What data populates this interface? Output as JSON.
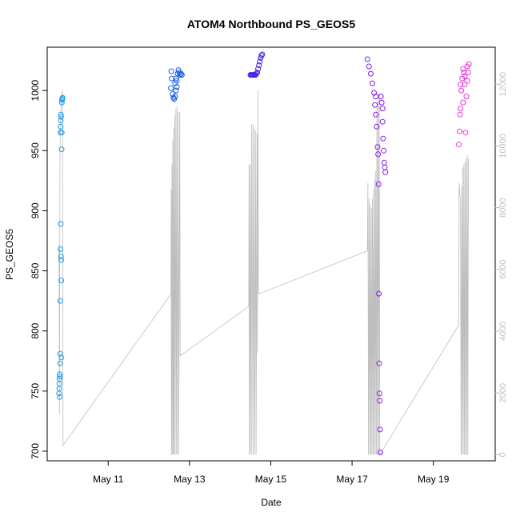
{
  "chart_data": {
    "type": "scatter",
    "title": "ATOM4 Northbound PS_GEOS5",
    "xlabel": "Date",
    "ylabel": "PS_GEOS5",
    "xlim": [
      "2016-05-09T12:00",
      "2016-05-20T12:30"
    ],
    "ylim": [
      692,
      1036
    ],
    "yticks": [
      700,
      750,
      800,
      850,
      900,
      950,
      1000
    ],
    "xticks": [
      {
        "label": "May 11",
        "t": "2016-05-11T00:00"
      },
      {
        "label": "May 13",
        "t": "2016-05-13T00:00"
      },
      {
        "label": "May 15",
        "t": "2016-05-15T00:00"
      },
      {
        "label": "May 17",
        "t": "2016-05-17T00:00"
      },
      {
        "label": "May 19",
        "t": "2016-05-19T00:00"
      }
    ],
    "y2lim": [
      -200,
      13200
    ],
    "y2ticks": [
      0,
      2000,
      4000,
      6000,
      8000,
      10000,
      12000
    ],
    "y2color": "#bebebe",
    "grid": false,
    "legend": "none",
    "series": [
      {
        "color": "#1e9bea",
        "points": [
          [
            "2016-05-09T19:00",
            748
          ],
          [
            "2016-05-09T19:05",
            752
          ],
          [
            "2016-05-09T19:10",
            756
          ],
          [
            "2016-05-09T19:15",
            760
          ],
          [
            "2016-05-09T19:20",
            764
          ],
          [
            "2016-05-09T19:25",
            745
          ],
          [
            "2016-05-09T19:30",
            762
          ],
          [
            "2016-05-09T19:35",
            773
          ],
          [
            "2016-05-09T19:40",
            781
          ],
          [
            "2016-05-09T19:45",
            825
          ],
          [
            "2016-05-09T19:50",
            868
          ],
          [
            "2016-05-09T20:00",
            889
          ],
          [
            "2016-05-09T20:10",
            862
          ],
          [
            "2016-05-09T20:15",
            859
          ],
          [
            "2016-05-09T20:20",
            842
          ],
          [
            "2016-05-09T20:25",
            778
          ],
          [
            "2016-05-09T20:30",
            951
          ],
          [
            "2016-05-09T20:35",
            965
          ],
          [
            "2016-05-09T19:50",
            965
          ],
          [
            "2016-05-09T19:55",
            970
          ],
          [
            "2016-05-09T20:00",
            975
          ],
          [
            "2016-05-09T20:05",
            980
          ],
          [
            "2016-05-09T20:10",
            978
          ],
          [
            "2016-05-09T20:40",
            990
          ],
          [
            "2016-05-09T20:45",
            992
          ],
          [
            "2016-05-09T20:55",
            993
          ],
          [
            "2016-05-09T21:05",
            994
          ]
        ]
      },
      {
        "color": "#1a5ce6",
        "points": [
          [
            "2016-05-12T13:00",
            1002
          ],
          [
            "2016-05-12T13:15",
            1016
          ],
          [
            "2016-05-12T13:30",
            1010
          ],
          [
            "2016-05-12T14:00",
            997
          ],
          [
            "2016-05-12T14:30",
            994
          ],
          [
            "2016-05-12T15:00",
            993
          ],
          [
            "2016-05-12T15:30",
            995
          ],
          [
            "2016-05-12T16:00",
            1000
          ],
          [
            "2016-05-12T16:30",
            1008
          ],
          [
            "2016-05-12T17:00",
            1014
          ],
          [
            "2016-05-12T17:30",
            1017
          ],
          [
            "2016-05-12T18:00",
            1015
          ],
          [
            "2016-05-12T18:30",
            1013
          ],
          [
            "2016-05-12T19:00",
            1014
          ],
          [
            "2016-05-12T19:30",
            1013
          ],
          [
            "2016-05-12T15:30",
            1006
          ],
          [
            "2016-05-12T16:00",
            1010
          ],
          [
            "2016-05-12T16:30",
            1003
          ]
        ]
      },
      {
        "color": "#4b20e8",
        "points": [
          [
            "2016-05-14T12:00",
            1013
          ],
          [
            "2016-05-14T12:30",
            1013
          ],
          [
            "2016-05-14T13:00",
            1013
          ],
          [
            "2016-05-14T13:30",
            1013
          ],
          [
            "2016-05-14T14:00",
            1013
          ],
          [
            "2016-05-14T14:30",
            1013
          ],
          [
            "2016-05-14T15:00",
            1013
          ],
          [
            "2016-05-14T15:30",
            1014
          ],
          [
            "2016-05-14T16:00",
            1015
          ],
          [
            "2016-05-14T16:30",
            1018
          ],
          [
            "2016-05-14T17:00",
            1021
          ],
          [
            "2016-05-14T17:30",
            1024
          ],
          [
            "2016-05-14T18:00",
            1027
          ],
          [
            "2016-05-14T18:30",
            1029
          ],
          [
            "2016-05-14T19:00",
            1030
          ]
        ]
      },
      {
        "color": "#8a1be6",
        "points": [
          [
            "2016-05-17T09:00",
            1026
          ],
          [
            "2016-05-17T10:00",
            1020
          ],
          [
            "2016-05-17T11:00",
            1014
          ],
          [
            "2016-05-17T12:00",
            1006
          ],
          [
            "2016-05-17T13:00",
            998
          ],
          [
            "2016-05-17T13:30",
            988
          ],
          [
            "2016-05-17T14:00",
            980
          ],
          [
            "2016-05-17T14:30",
            970
          ],
          [
            "2016-05-17T15:00",
            953
          ],
          [
            "2016-05-17T15:20",
            947
          ],
          [
            "2016-05-17T15:40",
            922
          ],
          [
            "2016-05-17T15:50",
            831
          ],
          [
            "2016-05-17T16:00",
            773
          ],
          [
            "2016-05-17T16:10",
            748
          ],
          [
            "2016-05-17T16:20",
            742
          ],
          [
            "2016-05-17T16:30",
            718
          ],
          [
            "2016-05-17T16:40",
            699
          ],
          [
            "2016-05-17T17:00",
            995
          ],
          [
            "2016-05-17T17:30",
            990
          ],
          [
            "2016-05-17T18:00",
            974
          ],
          [
            "2016-05-17T18:20",
            960
          ],
          [
            "2016-05-17T18:40",
            950
          ],
          [
            "2016-05-17T19:00",
            940
          ],
          [
            "2016-05-17T19:20",
            936
          ],
          [
            "2016-05-17T19:40",
            932
          ],
          [
            "2016-05-17T18:00",
            985
          ],
          [
            "2016-05-17T14:00",
            995
          ]
        ]
      },
      {
        "color": "#e63ad6",
        "points": [
          [
            "2016-05-19T15:00",
            955
          ],
          [
            "2016-05-19T15:30",
            966
          ],
          [
            "2016-05-19T16:00",
            985
          ],
          [
            "2016-05-19T16:30",
            1000
          ],
          [
            "2016-05-19T17:00",
            1010
          ],
          [
            "2016-05-19T17:30",
            1018
          ],
          [
            "2016-05-19T18:00",
            1015
          ],
          [
            "2016-05-19T18:30",
            1005
          ],
          [
            "2016-05-19T19:00",
            965
          ],
          [
            "2016-05-19T19:30",
            995
          ],
          [
            "2016-05-19T20:00",
            1008
          ],
          [
            "2016-05-19T20:30",
            1015
          ],
          [
            "2016-05-19T21:00",
            1022
          ],
          [
            "2016-05-19T16:00",
            1005
          ],
          [
            "2016-05-19T17:30",
            990
          ],
          [
            "2016-05-19T18:30",
            1012
          ],
          [
            "2016-05-19T20:00",
            1020
          ],
          [
            "2016-05-19T15:45",
            980
          ]
        ]
      }
    ],
    "secondary_line": {
      "color": "#bebebe",
      "points": [
        [
          "2016-05-09T19:00",
          6800
        ],
        [
          "2016-05-09T19:15",
          1300
        ],
        [
          "2016-05-09T19:30",
          9500
        ],
        [
          "2016-05-09T19:45",
          10500
        ],
        [
          "2016-05-09T20:00",
          11000
        ],
        [
          "2016-05-09T20:30",
          11500
        ],
        [
          "2016-05-09T21:00",
          11800
        ],
        [
          "2016-05-09T21:20",
          300
        ],
        [
          "2016-05-12T13:00",
          5200
        ],
        [
          "2016-05-12T13:10",
          8600
        ],
        [
          "2016-05-12T13:20",
          0
        ],
        [
          "2016-05-12T13:40",
          9400
        ],
        [
          "2016-05-12T13:50",
          0
        ],
        [
          "2016-05-12T14:10",
          10200
        ],
        [
          "2016-05-12T14:20",
          0
        ],
        [
          "2016-05-12T14:40",
          10600
        ],
        [
          "2016-05-12T14:50",
          0
        ],
        [
          "2016-05-12T15:20",
          11000
        ],
        [
          "2016-05-12T15:30",
          0
        ],
        [
          "2016-05-12T16:00",
          11200
        ],
        [
          "2016-05-12T16:10",
          0
        ],
        [
          "2016-05-12T16:40",
          11300
        ],
        [
          "2016-05-12T16:50",
          0
        ],
        [
          "2016-05-12T17:30",
          11100
        ],
        [
          "2016-05-12T17:40",
          0
        ],
        [
          "2016-05-12T18:20",
          11100
        ],
        [
          "2016-05-12T18:30",
          3200
        ],
        [
          "2016-05-14T11:00",
          4800
        ],
        [
          "2016-05-14T11:10",
          9400
        ],
        [
          "2016-05-14T11:20",
          0
        ],
        [
          "2016-05-14T11:50",
          9400
        ],
        [
          "2016-05-14T12:00",
          0
        ],
        [
          "2016-05-14T12:40",
          10700
        ],
        [
          "2016-05-14T12:50",
          0
        ],
        [
          "2016-05-14T13:30",
          10700
        ],
        [
          "2016-05-14T13:40",
          0
        ],
        [
          "2016-05-14T14:20",
          10600
        ],
        [
          "2016-05-14T14:30",
          0
        ],
        [
          "2016-05-14T15:10",
          10500
        ],
        [
          "2016-05-14T15:20",
          0
        ],
        [
          "2016-05-14T16:00",
          10400
        ],
        [
          "2016-05-14T16:10",
          3300
        ],
        [
          "2016-05-14T16:30",
          11800
        ],
        [
          "2016-05-14T16:40",
          5200
        ],
        [
          "2016-05-17T09:00",
          6600
        ],
        [
          "2016-05-17T09:20",
          8800
        ],
        [
          "2016-05-17T09:40",
          0
        ],
        [
          "2016-05-17T10:00",
          8300
        ],
        [
          "2016-05-17T10:20",
          0
        ],
        [
          "2016-05-17T10:40",
          8100
        ],
        [
          "2016-05-17T11:00",
          0
        ],
        [
          "2016-05-17T11:20",
          8000
        ],
        [
          "2016-05-17T11:40",
          0
        ],
        [
          "2016-05-17T12:00",
          8300
        ],
        [
          "2016-05-17T12:20",
          0
        ],
        [
          "2016-05-17T12:40",
          8600
        ],
        [
          "2016-05-17T13:00",
          0
        ],
        [
          "2016-05-17T13:20",
          8900
        ],
        [
          "2016-05-17T13:40",
          0
        ],
        [
          "2016-05-17T14:00",
          9200
        ],
        [
          "2016-05-17T14:20",
          0
        ],
        [
          "2016-05-17T14:40",
          11300
        ],
        [
          "2016-05-17T15:00",
          0
        ],
        [
          "2016-05-17T15:20",
          11500
        ],
        [
          "2016-05-17T15:40",
          0
        ],
        [
          "2016-05-17T16:00",
          11700
        ],
        [
          "2016-05-17T16:20",
          0
        ],
        [
          "2016-05-19T15:00",
          4200
        ],
        [
          "2016-05-19T15:10",
          8800
        ],
        [
          "2016-05-19T15:40",
          8400
        ],
        [
          "2016-05-19T16:00",
          8200
        ],
        [
          "2016-05-19T16:20",
          0
        ],
        [
          "2016-05-19T16:40",
          8700
        ],
        [
          "2016-05-19T17:00",
          0
        ],
        [
          "2016-05-19T17:20",
          9300
        ],
        [
          "2016-05-19T17:40",
          0
        ],
        [
          "2016-05-19T18:00",
          9400
        ],
        [
          "2016-05-19T18:20",
          0
        ],
        [
          "2016-05-19T18:40",
          9500
        ],
        [
          "2016-05-19T19:00",
          0
        ],
        [
          "2016-05-19T19:20",
          9600
        ],
        [
          "2016-05-19T19:40",
          0
        ],
        [
          "2016-05-19T20:00",
          9700
        ],
        [
          "2016-05-19T20:20",
          0
        ],
        [
          "2016-05-19T20:40",
          9600
        ]
      ]
    }
  }
}
